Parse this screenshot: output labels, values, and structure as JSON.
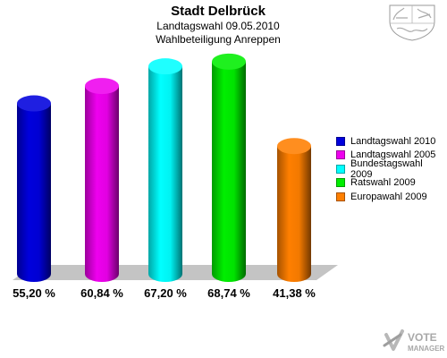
{
  "header": {
    "title": "Stadt Delbrück",
    "subtitle1": "Landtagswahl 09.05.2010",
    "subtitle2": "Wahlbeteiligung Anreppen"
  },
  "chart_data": {
    "type": "bar",
    "title": "Stadt Delbrück",
    "subtitle": [
      "Landtagswahl 09.05.2010",
      "Wahlbeteiligung Anreppen"
    ],
    "categories": [
      "Landtagswahl 2010",
      "Landtagswahl 2005",
      "Bundestagswahl 2009",
      "Ratswahl 2009",
      "Europawahl 2009"
    ],
    "values": [
      55.2,
      60.84,
      67.2,
      68.74,
      41.38
    ],
    "value_labels": [
      "55,20 %",
      "60,84 %",
      "67,20 %",
      "68,74 %",
      "41,38 %"
    ],
    "colors": [
      "#0000dd",
      "#ee00ee",
      "#00ffff",
      "#00ee00",
      "#ff7f00"
    ],
    "legend_position": "right",
    "style": "3d-cylinder",
    "grid": false
  },
  "legend": {
    "items": [
      {
        "label": "Landtagswahl 2010",
        "color": "#0000dd"
      },
      {
        "label": "Landtagswahl 2005",
        "color": "#ee00ee"
      },
      {
        "label": "Bundestagswahl 2009",
        "color": "#00ffff"
      },
      {
        "label": "Ratswahl 2009",
        "color": "#00ee00"
      },
      {
        "label": "Europawahl 2009",
        "color": "#ff7f00"
      }
    ]
  },
  "branding": {
    "crest_icon": "nrw-coat-of-arms-icon",
    "logo_text_1": "VOTE",
    "logo_text_2": "MANAGER"
  }
}
